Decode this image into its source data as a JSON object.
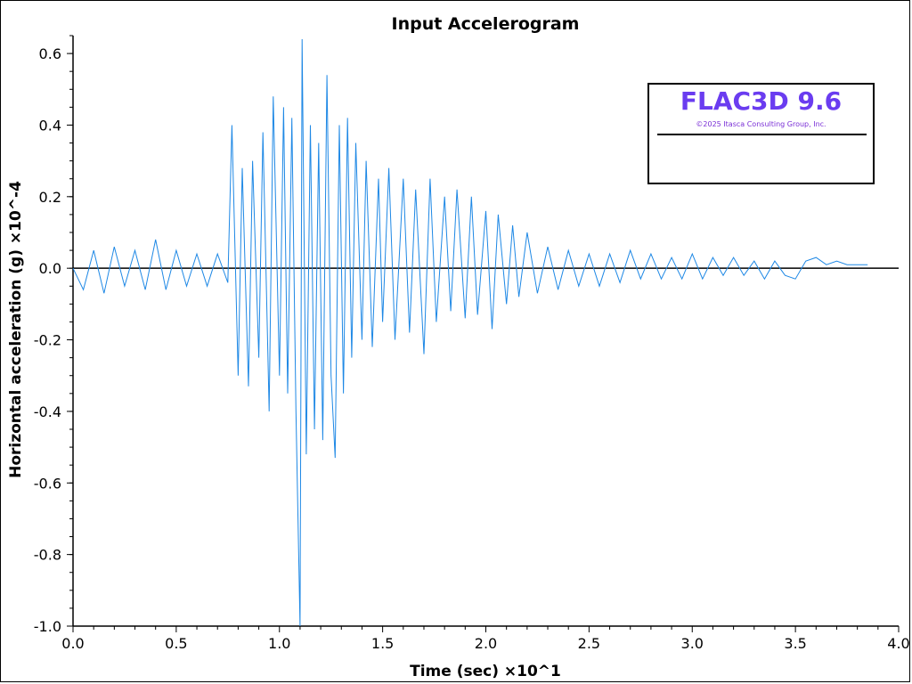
{
  "chart_data": {
    "type": "line",
    "title": "Input Accelerogram",
    "xlabel": "Time (sec) ×10^1",
    "ylabel": "Horizontal acceleration (g) ×10^-4",
    "xlim": [
      0.0,
      4.0
    ],
    "ylim": [
      -1.0,
      0.65
    ],
    "xticks": [
      "0.0",
      "0.5",
      "1.0",
      "1.5",
      "2.0",
      "2.5",
      "3.0",
      "3.5",
      "4.0"
    ],
    "yticks": [
      "0.6",
      "0.4",
      "0.2",
      "0.0",
      "-0.2",
      "-0.4",
      "-0.6",
      "-0.8",
      "-1.0"
    ],
    "grid": false,
    "line_color": "#1e88e5",
    "zero_line": true,
    "series": [
      {
        "x": [
          0.0,
          0.05,
          0.1,
          0.15,
          0.2,
          0.25,
          0.3,
          0.35,
          0.4,
          0.45,
          0.5,
          0.55,
          0.6,
          0.65,
          0.7,
          0.75,
          0.77,
          0.8,
          0.82,
          0.85,
          0.87,
          0.9,
          0.92,
          0.95,
          0.97,
          1.0,
          1.02,
          1.04,
          1.06,
          1.08,
          1.1,
          1.11,
          1.13,
          1.15,
          1.17,
          1.19,
          1.21,
          1.23,
          1.25,
          1.27,
          1.29,
          1.31,
          1.33,
          1.35,
          1.37,
          1.4,
          1.42,
          1.45,
          1.48,
          1.5,
          1.53,
          1.56,
          1.6,
          1.63,
          1.66,
          1.7,
          1.73,
          1.76,
          1.8,
          1.83,
          1.86,
          1.9,
          1.93,
          1.96,
          2.0,
          2.03,
          2.06,
          2.1,
          2.13,
          2.16,
          2.2,
          2.25,
          2.3,
          2.35,
          2.4,
          2.45,
          2.5,
          2.55,
          2.6,
          2.65,
          2.7,
          2.75,
          2.8,
          2.85,
          2.9,
          2.95,
          3.0,
          3.05,
          3.1,
          3.15,
          3.2,
          3.25,
          3.3,
          3.35,
          3.4,
          3.45,
          3.5,
          3.55,
          3.6,
          3.65,
          3.7,
          3.75,
          3.8,
          3.85
        ],
        "y": [
          0.0,
          -0.06,
          0.05,
          -0.07,
          0.06,
          -0.05,
          0.05,
          -0.06,
          0.08,
          -0.06,
          0.05,
          -0.05,
          0.04,
          -0.05,
          0.04,
          -0.04,
          0.4,
          -0.3,
          0.28,
          -0.33,
          0.3,
          -0.25,
          0.38,
          -0.4,
          0.48,
          -0.3,
          0.45,
          -0.35,
          0.42,
          -0.4,
          -1.0,
          0.64,
          -0.52,
          0.4,
          -0.45,
          0.35,
          -0.48,
          0.54,
          -0.3,
          -0.53,
          0.4,
          -0.35,
          0.42,
          -0.25,
          0.35,
          -0.2,
          0.3,
          -0.22,
          0.25,
          -0.15,
          0.28,
          -0.2,
          0.25,
          -0.18,
          0.22,
          -0.24,
          0.25,
          -0.15,
          0.2,
          -0.12,
          0.22,
          -0.14,
          0.2,
          -0.13,
          0.16,
          -0.17,
          0.15,
          -0.1,
          0.12,
          -0.08,
          0.1,
          -0.07,
          0.06,
          -0.06,
          0.05,
          -0.05,
          0.04,
          -0.05,
          0.04,
          -0.04,
          0.05,
          -0.03,
          0.04,
          -0.03,
          0.03,
          -0.03,
          0.04,
          -0.03,
          0.03,
          -0.02,
          0.03,
          -0.02,
          0.02,
          -0.03,
          0.02,
          -0.02,
          -0.03,
          0.02,
          0.03,
          0.01,
          0.02,
          0.01,
          0.01,
          0.01
        ]
      }
    ]
  },
  "logo": {
    "title": "FLAC3D 9.6",
    "copyright": "©2025 Itasca Consulting Group, Inc.",
    "title_color": "#6a3cf0"
  }
}
